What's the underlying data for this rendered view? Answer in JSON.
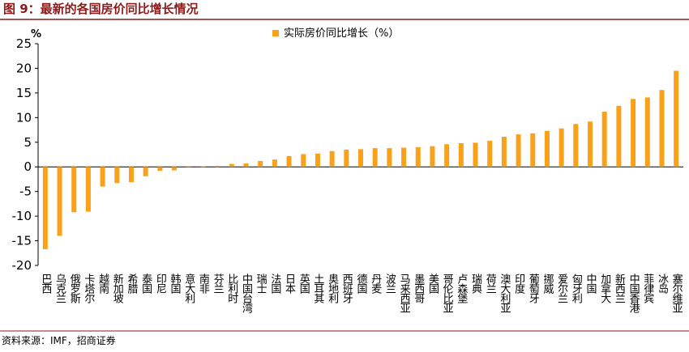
{
  "header": {
    "title": "图 9：最新的各国房价同比增长情况"
  },
  "footer": {
    "source": "资料来源：IMF，招商证券"
  },
  "chart_data": {
    "type": "bar",
    "y_label": "%",
    "categories": [
      "巴西",
      "乌克兰",
      "俄罗斯",
      "卡塔尔",
      "越南",
      "新加坡",
      "希腊",
      "泰国",
      "印尼",
      "韩国",
      "意大利",
      "南非",
      "芬兰",
      "比利时",
      "中国台湾",
      "瑞士",
      "法国",
      "日本",
      "英国",
      "土耳其",
      "奥地利",
      "西班牙",
      "德国",
      "丹麦",
      "波兰",
      "马来西亚",
      "墨西哥",
      "美国",
      "哥伦比亚",
      "卢森堡",
      "瑞典",
      "荷兰",
      "澳大利亚",
      "印度",
      "葡萄牙",
      "挪威",
      "爱尔兰",
      "匈牙利",
      "中国",
      "加拿大",
      "新西兰",
      "中国香港",
      "菲律宾",
      "冰岛",
      "塞尔维亚"
    ],
    "series": [
      {
        "name": "实际房价同比增长（%）",
        "color": "#F9A11B",
        "values": [
          -16.7,
          -14,
          -9.2,
          -9.1,
          -4,
          -3.3,
          -3.1,
          -1.9,
          -0.8,
          -0.7,
          0.05,
          0.1,
          0.2,
          0.6,
          0.7,
          1.2,
          1.5,
          2.2,
          2.6,
          2.7,
          3.2,
          3.5,
          3.6,
          3.8,
          3.8,
          3.9,
          4.0,
          4.2,
          4.6,
          4.8,
          4.9,
          5.3,
          6.1,
          6.6,
          6.8,
          7.3,
          7.8,
          8.7,
          9.2,
          11.2,
          12.4,
          13.8,
          14.1,
          15.6,
          19.5
        ]
      }
    ],
    "ylim": [
      -20,
      25
    ],
    "yticks": [
      -20,
      -15,
      -10,
      -5,
      0,
      5,
      10,
      15,
      20,
      25
    ],
    "legend": "top"
  }
}
